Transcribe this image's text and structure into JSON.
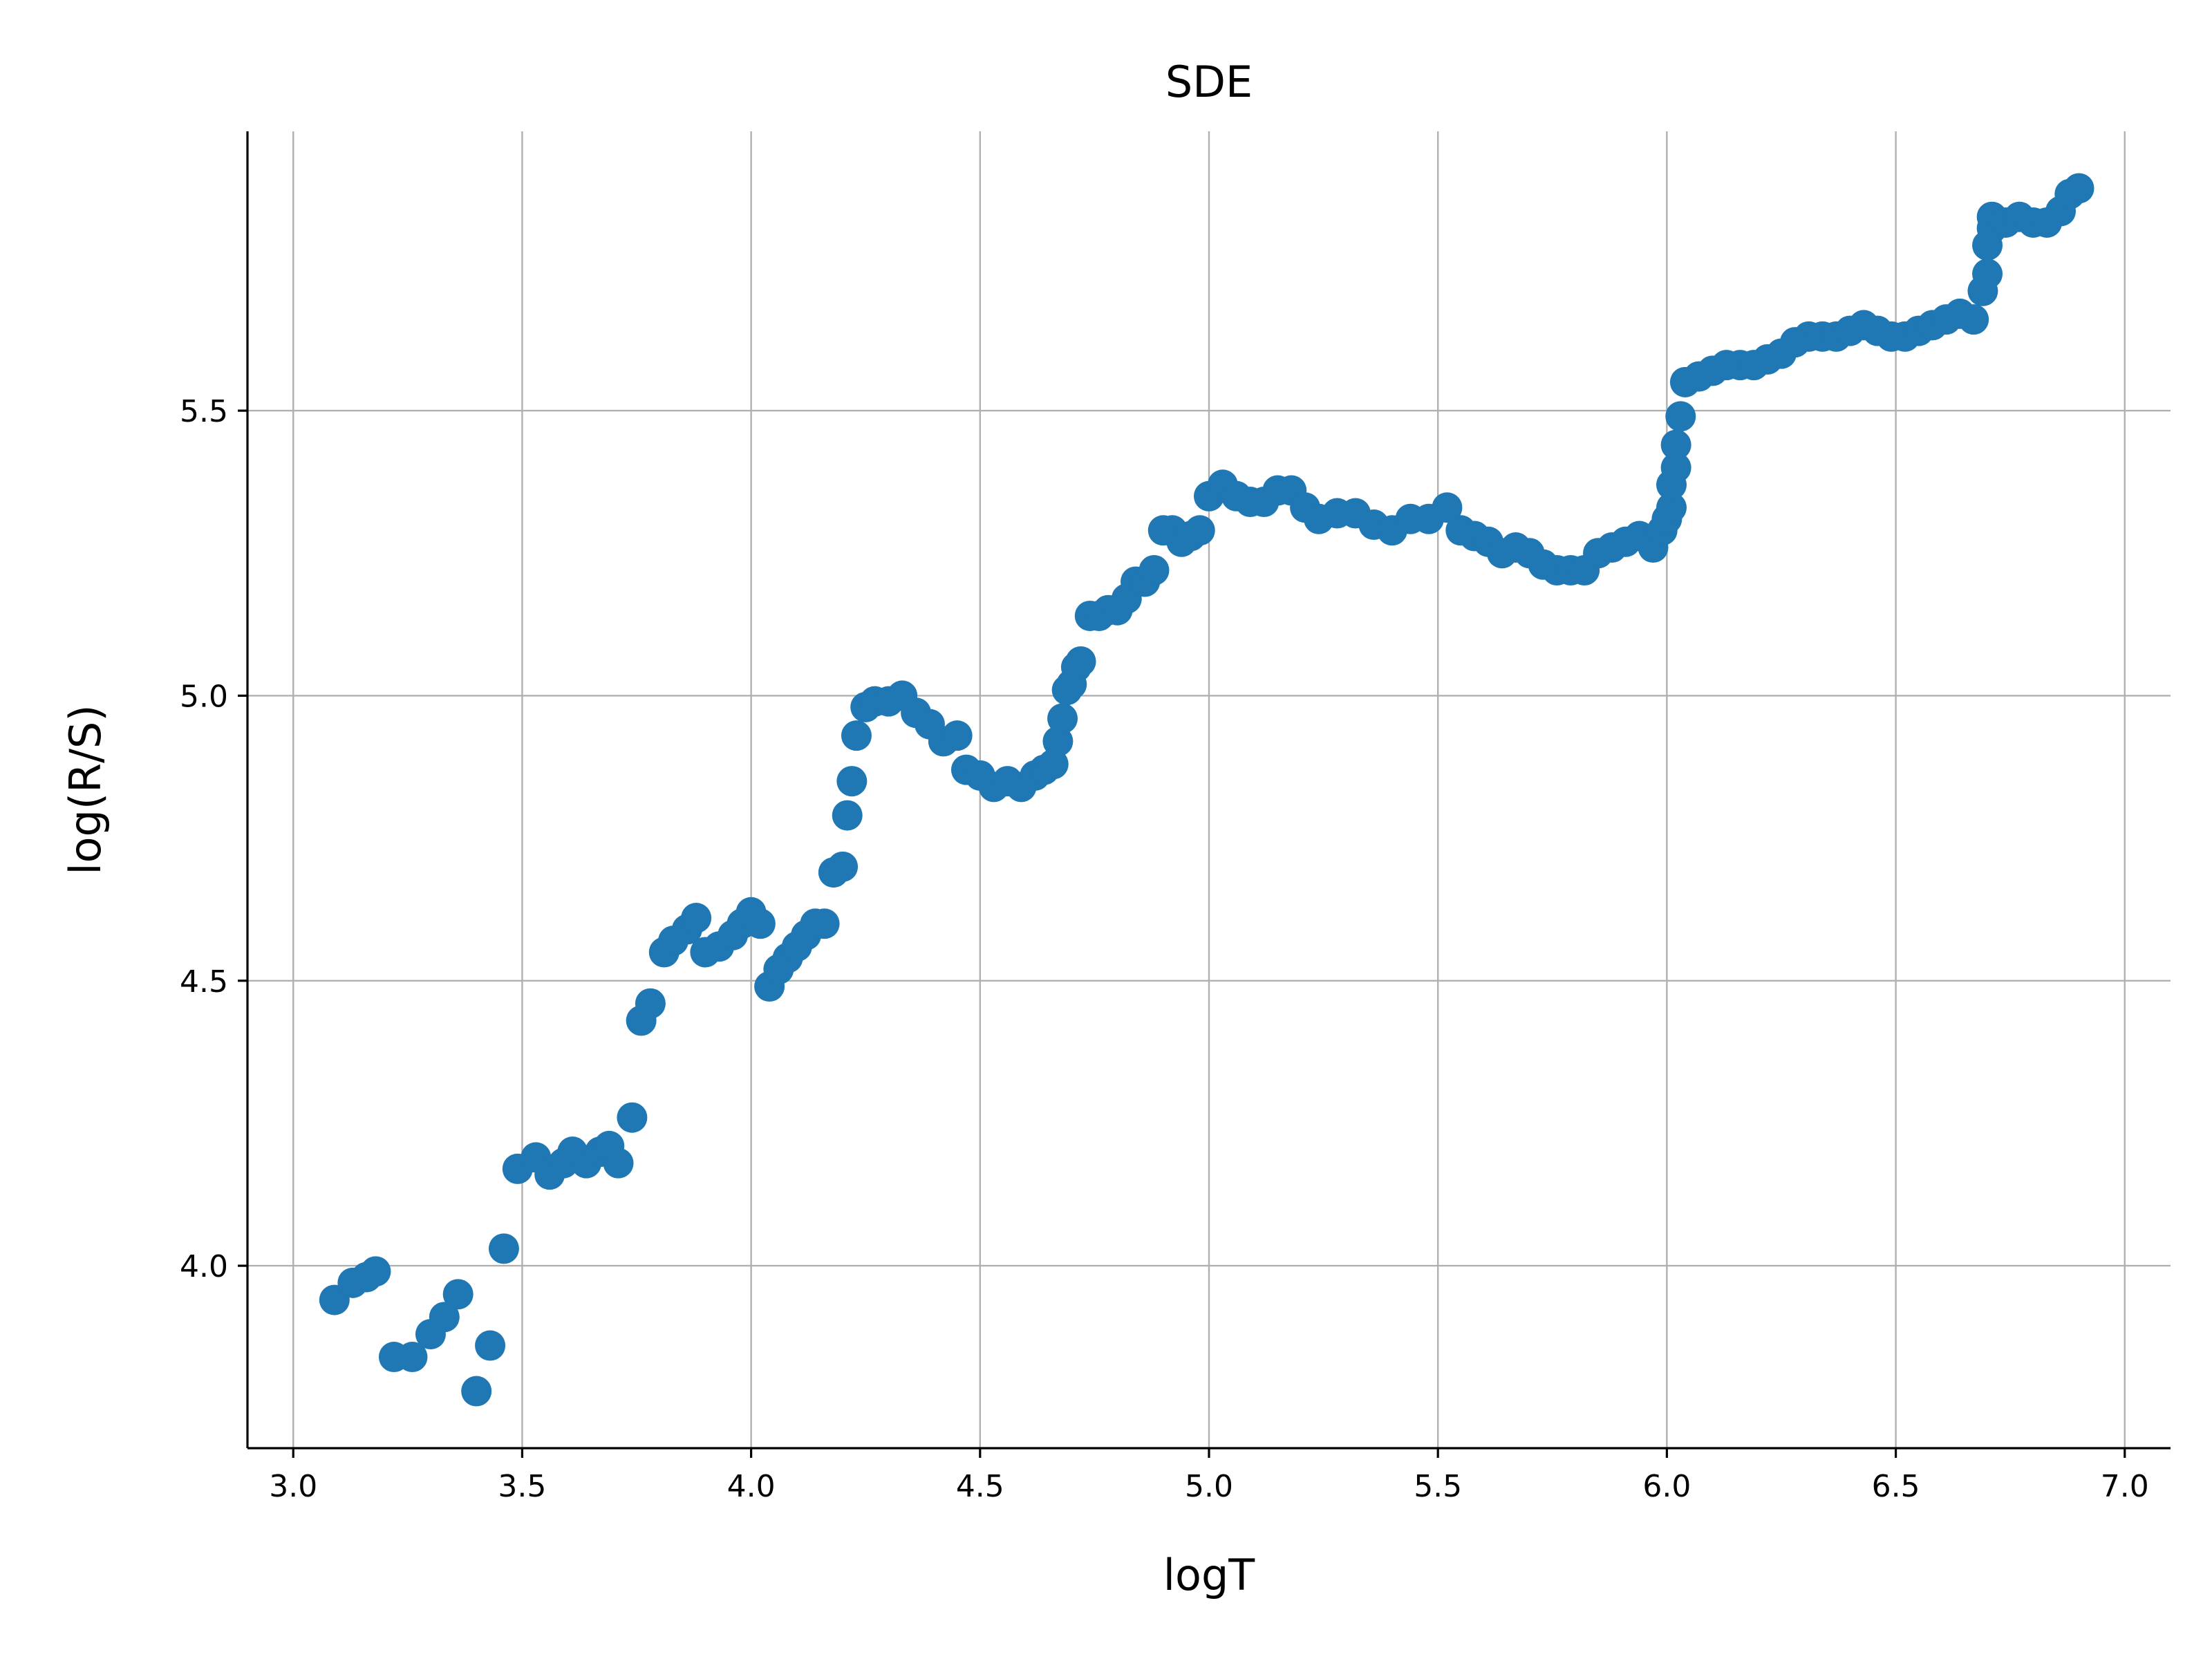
{
  "chart_data": {
    "type": "scatter",
    "title": "SDE",
    "xlabel": "logT",
    "ylabel": "log(R/S)",
    "xlim": [
      2.9,
      7.1
    ],
    "ylim": [
      3.68,
      5.99
    ],
    "xticks": [
      3.0,
      3.5,
      4.0,
      4.5,
      5.0,
      5.5,
      6.0,
      6.5,
      7.0
    ],
    "xtick_labels": [
      "3.0",
      "3.5",
      "4.0",
      "4.5",
      "5.0",
      "5.5",
      "6.0",
      "6.5",
      "7.0"
    ],
    "yticks": [
      4.0,
      4.5,
      5.0,
      5.5
    ],
    "ytick_labels": [
      "4.0",
      "4.5",
      "5.0",
      "5.5"
    ],
    "grid": true,
    "marker_color": "#1f77b4",
    "series": [
      {
        "x": [
          3.09,
          3.13,
          3.16,
          3.18,
          3.22,
          3.26,
          3.3,
          3.33,
          3.36,
          3.4,
          3.43,
          3.46,
          3.49,
          3.53,
          3.56,
          3.59,
          3.61,
          3.64,
          3.67,
          3.69,
          3.71,
          3.74,
          3.76,
          3.78,
          3.81,
          3.83,
          3.86,
          3.88,
          3.9,
          3.93,
          3.96,
          3.98,
          4.0,
          4.02,
          4.04,
          4.06,
          4.08,
          4.1,
          4.12,
          4.14,
          4.16,
          4.18,
          4.2,
          4.21,
          4.22,
          4.23,
          4.25,
          4.27,
          4.3,
          4.33,
          4.36,
          4.39,
          4.42,
          4.45,
          4.47,
          4.5,
          4.53,
          4.56,
          4.59,
          4.62,
          4.64,
          4.66,
          4.67,
          4.68,
          4.69,
          4.7,
          4.71,
          4.72,
          4.74,
          4.76,
          4.78,
          4.8,
          4.82,
          4.84,
          4.86,
          4.88,
          4.9,
          4.92,
          4.94,
          4.96,
          4.98,
          5.0,
          5.03,
          5.06,
          5.09,
          5.12,
          5.15,
          5.18,
          5.21,
          5.24,
          5.28,
          5.32,
          5.36,
          5.4,
          5.44,
          5.48,
          5.52,
          5.55,
          5.58,
          5.61,
          5.64,
          5.67,
          5.7,
          5.73,
          5.76,
          5.79,
          5.82,
          5.85,
          5.88,
          5.91,
          5.94,
          5.97,
          5.99,
          6.0,
          6.01,
          6.01,
          6.02,
          6.02,
          6.03,
          6.04,
          6.07,
          6.1,
          6.13,
          6.16,
          6.19,
          6.22,
          6.25,
          6.28,
          6.31,
          6.34,
          6.37,
          6.4,
          6.43,
          6.46,
          6.49,
          6.52,
          6.55,
          6.58,
          6.61,
          6.64,
          6.67,
          6.69,
          6.7,
          6.7,
          6.71,
          6.71,
          6.74,
          6.77,
          6.8,
          6.83,
          6.86,
          6.88,
          6.9
        ],
        "y": [
          3.94,
          3.97,
          3.98,
          3.99,
          3.84,
          3.84,
          3.88,
          3.91,
          3.95,
          3.78,
          3.86,
          4.03,
          4.17,
          4.19,
          4.16,
          4.18,
          4.2,
          4.18,
          4.2,
          4.21,
          4.18,
          4.26,
          4.43,
          4.46,
          4.55,
          4.57,
          4.59,
          4.61,
          4.55,
          4.56,
          4.58,
          4.6,
          4.62,
          4.6,
          4.49,
          4.52,
          4.54,
          4.56,
          4.58,
          4.6,
          4.6,
          4.69,
          4.7,
          4.79,
          4.85,
          4.93,
          4.98,
          4.99,
          4.99,
          5.0,
          4.97,
          4.95,
          4.92,
          4.93,
          4.87,
          4.86,
          4.84,
          4.85,
          4.84,
          4.86,
          4.87,
          4.88,
          4.92,
          4.96,
          5.01,
          5.02,
          5.05,
          5.06,
          5.14,
          5.14,
          5.15,
          5.15,
          5.17,
          5.2,
          5.2,
          5.22,
          5.29,
          5.29,
          5.27,
          5.28,
          5.29,
          5.35,
          5.37,
          5.35,
          5.34,
          5.34,
          5.36,
          5.36,
          5.33,
          5.31,
          5.32,
          5.32,
          5.3,
          5.29,
          5.31,
          5.31,
          5.33,
          5.29,
          5.28,
          5.27,
          5.25,
          5.26,
          5.25,
          5.23,
          5.22,
          5.22,
          5.22,
          5.25,
          5.26,
          5.27,
          5.28,
          5.26,
          5.29,
          5.31,
          5.33,
          5.37,
          5.4,
          5.44,
          5.49,
          5.55,
          5.56,
          5.57,
          5.58,
          5.58,
          5.58,
          5.59,
          5.6,
          5.62,
          5.63,
          5.63,
          5.63,
          5.64,
          5.65,
          5.64,
          5.63,
          5.63,
          5.64,
          5.65,
          5.66,
          5.67,
          5.66,
          5.71,
          5.74,
          5.79,
          5.84,
          5.82,
          5.83,
          5.84,
          5.83,
          5.83,
          5.85,
          5.88,
          5.89
        ]
      }
    ]
  }
}
